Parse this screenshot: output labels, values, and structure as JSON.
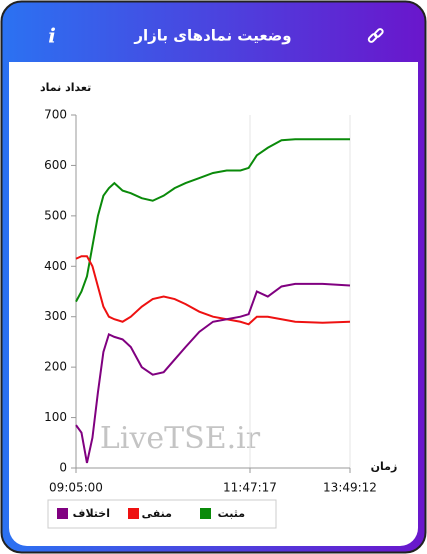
{
  "header": {
    "icon": "i"
  },
  "chart_data": {
    "type": "line",
    "title": "وضعیت نمادهای بازار",
    "y_label": "تعداد نماد",
    "x_label": "زمان",
    "watermark": "LiveTSE.ir",
    "x": [
      0,
      2,
      4,
      6,
      8,
      10,
      12,
      14,
      17,
      20,
      24,
      28,
      32,
      36,
      40,
      45,
      50,
      55,
      60,
      63,
      66,
      70,
      75,
      80,
      90,
      100
    ],
    "xlim": [
      0,
      100
    ],
    "xticks": [
      {
        "value": 0,
        "label": "09:05:00"
      },
      {
        "value": 63.5,
        "label": "11:47:17"
      },
      {
        "value": 100,
        "label": "13:49:12"
      }
    ],
    "ylim": [
      0,
      700
    ],
    "yticks": [
      0,
      100,
      200,
      300,
      400,
      500,
      600,
      700
    ],
    "series": [
      {
        "name": "مثبت",
        "color": "#0a8a0a",
        "values": [
          330,
          350,
          380,
          440,
          500,
          540,
          555,
          565,
          550,
          545,
          535,
          530,
          540,
          555,
          565,
          575,
          585,
          590,
          590,
          595,
          620,
          635,
          650,
          652,
          652,
          652
        ]
      },
      {
        "name": "منفی",
        "color": "#ee1111",
        "values": [
          415,
          420,
          420,
          400,
          360,
          320,
          300,
          295,
          290,
          300,
          320,
          335,
          340,
          335,
          325,
          310,
          300,
          295,
          290,
          285,
          300,
          300,
          295,
          290,
          288,
          290
        ]
      },
      {
        "name": "اختلاف",
        "color": "#800080",
        "values": [
          85,
          70,
          10,
          60,
          150,
          230,
          265,
          260,
          255,
          240,
          200,
          185,
          190,
          215,
          240,
          270,
          290,
          295,
          300,
          305,
          350,
          340,
          360,
          365,
          365,
          362
        ]
      }
    ]
  }
}
